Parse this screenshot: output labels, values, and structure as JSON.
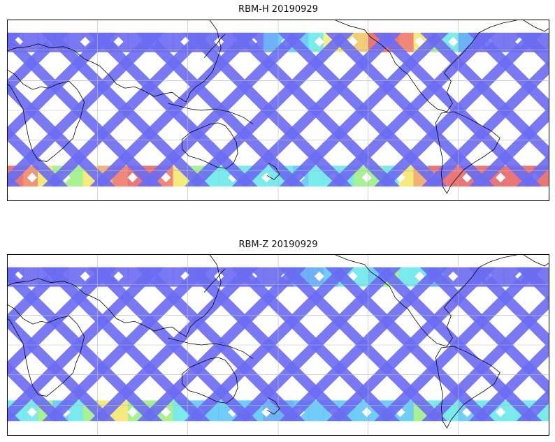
{
  "panels": [
    {
      "title": "RBM-H 20190929",
      "band": {
        "north": [
          "#6a6cf2",
          "#6a6cf2",
          "#6a6cf2",
          "#6a6cf2",
          "#6a6cf2",
          "#6a6cf2",
          "#6a6cf2",
          "#6a6cf2",
          "#6a6cf2",
          "#6a6cf2",
          "#6a6cf2",
          "#6a6cf2",
          "#6a6cf2",
          "#6a6cf2",
          "#6a6cf2",
          "#6a6cf2",
          "#6a6cf2",
          "#5fa8f5",
          "#5fc8f6",
          "#5fc8f6",
          "#6ce8ea",
          "#f2f07a",
          "#f4e870",
          "#f0c86a",
          "#e66868",
          "#e86868",
          "#f07a6a",
          "#f4e870",
          "#9ef08a",
          "#6ce8ea",
          "#5fa8f5",
          "#6a6cf2",
          "#6a6cf2",
          "#6a6cf2",
          "#6a6cf2",
          "#6a6cf2"
        ],
        "south": [
          "#e86868",
          "#f08a6a",
          "#f4e870",
          "#9ef08a",
          "#9ef08a",
          "#f4e870",
          "#f0a86a",
          "#f07a6a",
          "#e86868",
          "#e86868",
          "#f07a6a",
          "#f4e870",
          "#9ef08a",
          "#6ce8ea",
          "#6ce8ea",
          "#6ce8ea",
          "#6ce8ea",
          "#6ce8ea",
          "#6ce8ea",
          "#5fc8f6",
          "#6ce8ea",
          "#6ce8ea",
          "#6ce8ea",
          "#9ef08a",
          "#9ef08a",
          "#6ce8ea",
          "#f4e870",
          "#f0a86a",
          "#e86868",
          "#e86868",
          "#e86868",
          "#e86868",
          "#e86868",
          "#e86868",
          "#e86868",
          "#e86868"
        ]
      }
    },
    {
      "title": "RBM-Z 20190929",
      "band": {
        "north": [
          "#6a6cf2",
          "#6a6cf2",
          "#6a6cf2",
          "#6a6cf2",
          "#6a6cf2",
          "#6a6cf2",
          "#6a6cf2",
          "#6a6cf2",
          "#6a6cf2",
          "#6a6cf2",
          "#6a6cf2",
          "#6a6cf2",
          "#6a6cf2",
          "#6a6cf2",
          "#6a6cf2",
          "#6a6cf2",
          "#6a6cf2",
          "#6a6cf2",
          "#6a6cf2",
          "#5fa8f5",
          "#5fa8f5",
          "#5fc8f6",
          "#6ce8ea",
          "#6ce8ea",
          "#5fc8f6",
          "#9ef08a",
          "#6ce8ea",
          "#6ce8ea",
          "#5fa8f5",
          "#6a6cf2",
          "#6a6cf2",
          "#6a6cf2",
          "#6a6cf2",
          "#6a6cf2",
          "#6a6cf2",
          "#6a6cf2"
        ],
        "south": [
          "#6ce8ea",
          "#6ce8ea",
          "#9ef08a",
          "#5fc8f6",
          "#6ce8ea",
          "#9ef08a",
          "#f4e870",
          "#f4e870",
          "#9ef08a",
          "#9ef08a",
          "#9ef08a",
          "#6ce8ea",
          "#5fc8f6",
          "#5fc8f6",
          "#5fc8f6",
          "#5fc8f6",
          "#5fc8f6",
          "#5fa8f5",
          "#5fa8f5",
          "#5fc8f6",
          "#5fc8f6",
          "#5fc8f6",
          "#5fc8f6",
          "#5fc8f6",
          "#5fc8f6",
          "#5fc8f6",
          "#5fc8f6",
          "#9ef08a",
          "#6ce8ea",
          "#6ce8ea",
          "#5fc8f6",
          "#6ce8ea",
          "#6ce8ea",
          "#6ce8ea",
          "#6ce8ea",
          "#6ce8ea"
        ]
      }
    }
  ],
  "colors": {
    "track": "#6a6cf2",
    "coast": "#000000",
    "grid": "#b8b8b8"
  }
}
